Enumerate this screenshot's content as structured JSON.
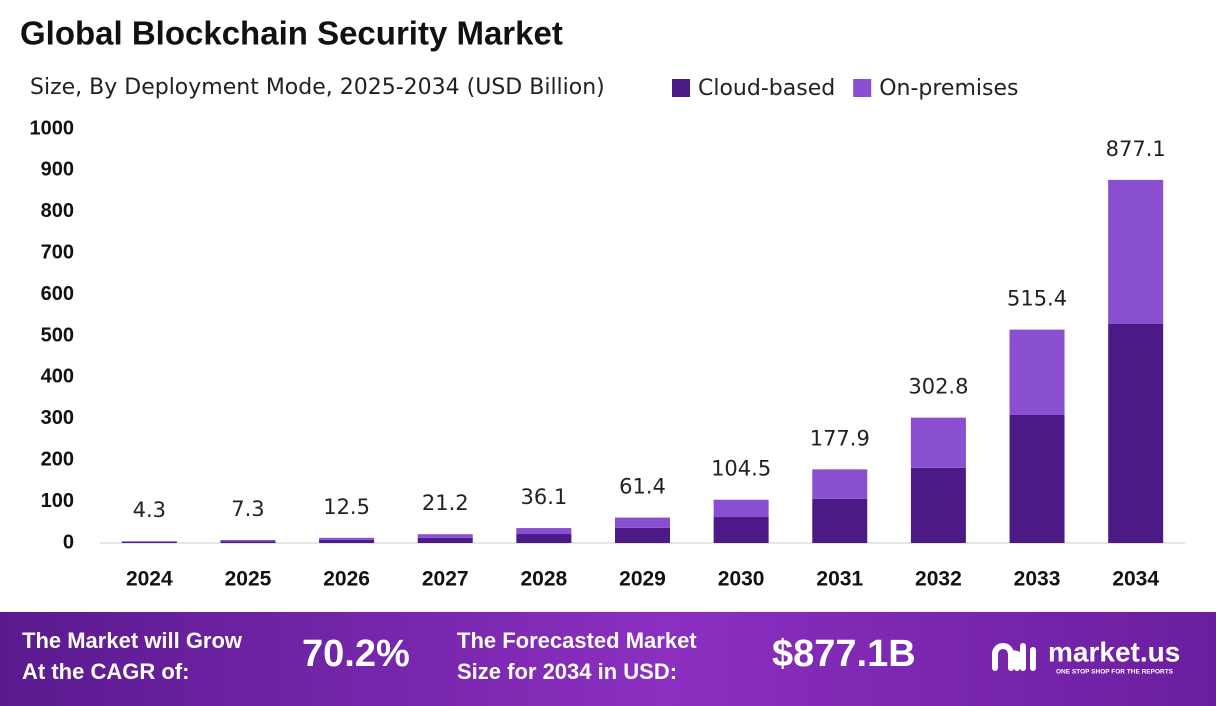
{
  "chart_data": {
    "type": "stacked_bar",
    "title": "Global Blockchain Security Market",
    "subtitle": "Size, By Deployment Mode, 2025-2034 (USD Billion)",
    "categories": [
      "2024",
      "2025",
      "2026",
      "2027",
      "2028",
      "2029",
      "2030",
      "2031",
      "2032",
      "2033",
      "2034"
    ],
    "series": [
      {
        "name": "Cloud-based",
        "color": "#4b1a86",
        "values": [
          2.6,
          4.4,
          7.5,
          12.7,
          21.7,
          36.8,
          62.7,
          106.7,
          181.7,
          309.2,
          529.0
        ]
      },
      {
        "name": "On-premises",
        "color": "#8a4fd0",
        "values": [
          1.7,
          2.9,
          5.0,
          8.5,
          14.4,
          24.6,
          41.8,
          71.2,
          121.1,
          206.2,
          348.1
        ]
      }
    ],
    "totals": [
      4.3,
      7.3,
      12.5,
      21.2,
      36.1,
      61.4,
      104.5,
      177.9,
      302.8,
      515.4,
      877.1
    ],
    "ylim": [
      0,
      1000
    ],
    "yticks": [
      0,
      100,
      200,
      300,
      400,
      500,
      600,
      700,
      800,
      900,
      1000
    ],
    "grid": false
  },
  "footer": {
    "cagr_text": [
      "The Market will Grow",
      "At the CAGR of:"
    ],
    "cagr_value": "70.2%",
    "forecast_text": [
      "The Forecasted Market",
      "Size for 2034 in USD:"
    ],
    "forecast_value": "$877.1B",
    "brand": "market.us",
    "tagline": "ONE STOP SHOP FOR THE REPORTS"
  }
}
